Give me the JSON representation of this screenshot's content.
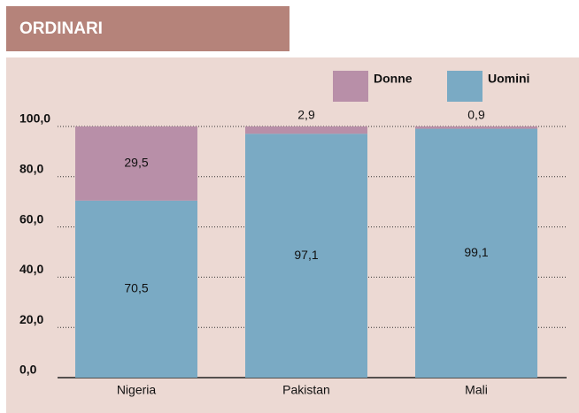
{
  "chart_data": {
    "type": "stacked_bar",
    "title": "ORDINARI",
    "categories": [
      "Nigeria",
      "Pakistan",
      "Mali"
    ],
    "series": [
      {
        "name": "Uomini",
        "color": "#7aaac4",
        "values": [
          70.5,
          97.1,
          99.1
        ],
        "value_labels": [
          "70,5",
          "97,1",
          "99,1"
        ]
      },
      {
        "name": "Donne",
        "color": "#b88fa8",
        "values": [
          29.5,
          2.9,
          0.9
        ],
        "value_labels": [
          "29,5",
          "2,9",
          "0,9"
        ]
      }
    ],
    "ylim": [
      0,
      100
    ],
    "yticks": [
      {
        "value": 0,
        "label": "0,0"
      },
      {
        "value": 20,
        "label": "20,0"
      },
      {
        "value": 40,
        "label": "40,0"
      },
      {
        "value": 60,
        "label": "60,0"
      },
      {
        "value": 80,
        "label": "80,0"
      },
      {
        "value": 100,
        "label": "100,0"
      }
    ],
    "grid": true
  }
}
